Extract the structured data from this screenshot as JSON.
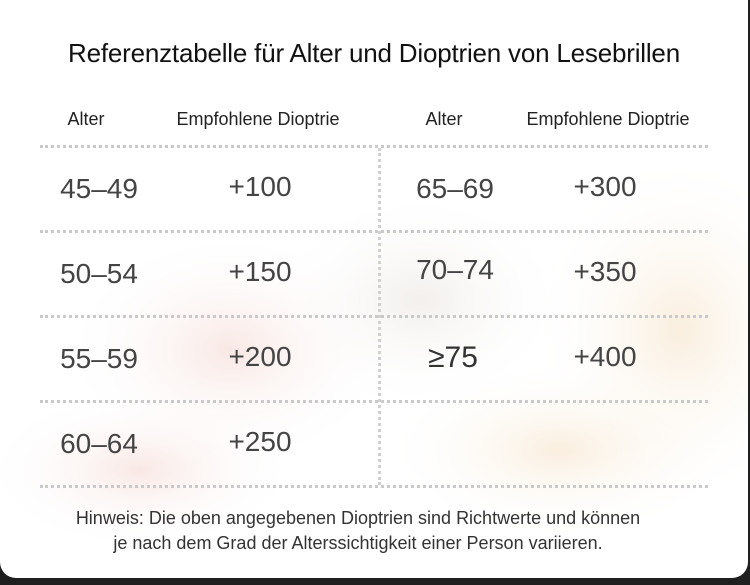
{
  "title": "Referenztabelle für Alter und Dioptrien von Lesebrillen",
  "headers": {
    "left_age": "Alter",
    "left_diopter": "Empfohlene Dioptrie",
    "right_age": "Alter",
    "right_diopter": "Empfohlene Dioptrie"
  },
  "left_rows": [
    {
      "age": "45–49",
      "diopter": "+100"
    },
    {
      "age": "50–54",
      "diopter": "+150"
    },
    {
      "age": "55–59",
      "diopter": "+200"
    },
    {
      "age": "60–64",
      "diopter": "+250"
    }
  ],
  "right_rows": [
    {
      "age": "65–69",
      "diopter": "+300"
    },
    {
      "age": "70–74",
      "diopter": "+350"
    },
    {
      "age": "≥75",
      "diopter": "+400"
    }
  ],
  "note": {
    "line1": "Hinweis: Die oben angegebenen Dioptrien sind Richtwerte und können",
    "line2": "je nach dem Grad der Alterssichtigkeit einer Person variieren."
  }
}
